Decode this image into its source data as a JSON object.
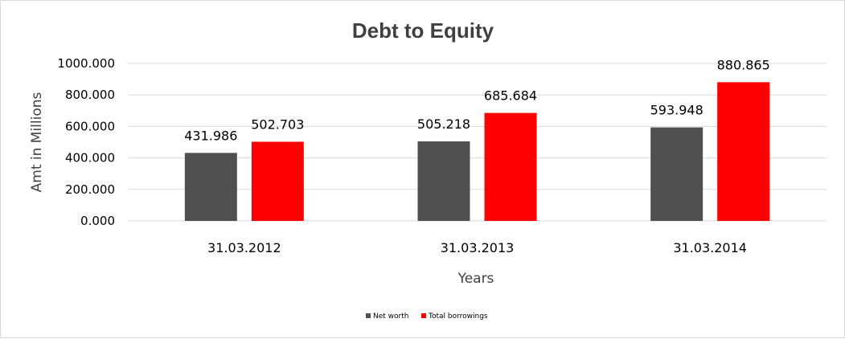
{
  "chart_data": {
    "type": "bar",
    "title": "Debt to Equity",
    "xlabel": "Years",
    "ylabel": "Amt in Millions",
    "categories": [
      "31.03.2012",
      "31.03.2013",
      "31.03.2014"
    ],
    "series": [
      {
        "name": "Net worth",
        "color": "#505050",
        "values": [
          431.986,
          505.218,
          593.948
        ],
        "labels": [
          "431.986",
          "505.218",
          "593.948"
        ]
      },
      {
        "name": "Total borrowings",
        "color": "#ff0000",
        "values": [
          502.703,
          685.684,
          880.865
        ],
        "labels": [
          "502.703",
          "685.684",
          "880.865"
        ]
      }
    ],
    "ylim": [
      0,
      1000
    ],
    "yticks": [
      "0.000",
      "200.000",
      "400.000",
      "600.000",
      "800.000",
      "1000.000"
    ],
    "ytick_values": [
      0,
      200,
      400,
      600,
      800,
      1000
    ],
    "grid": true,
    "legend_position": "bottom"
  }
}
